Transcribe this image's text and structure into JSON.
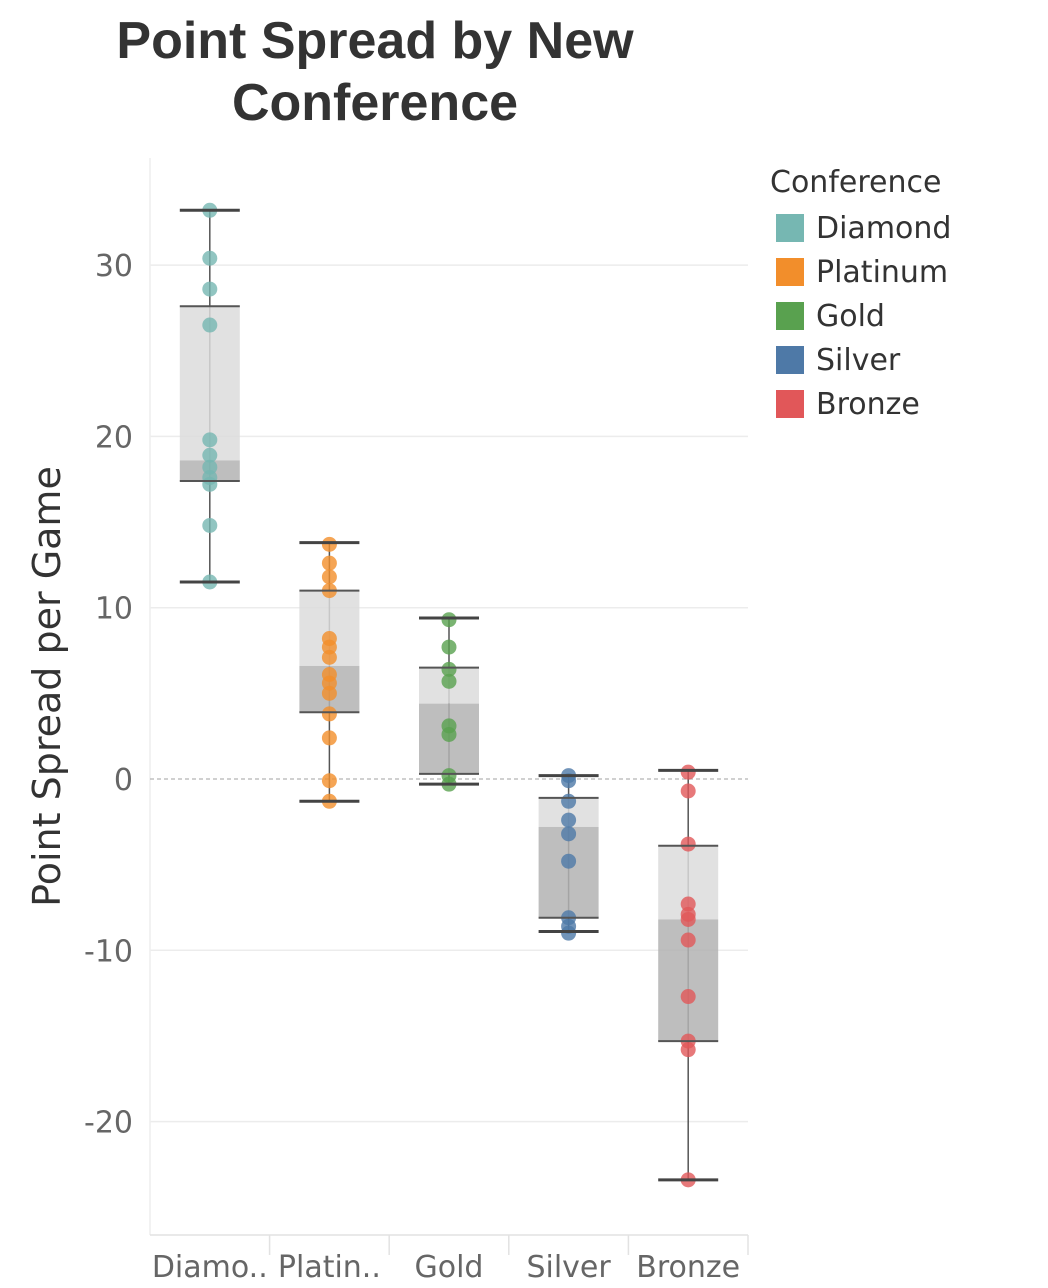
{
  "title": {
    "line1": "Point Spread by New",
    "line2": "Conference"
  },
  "chart_data": {
    "type": "boxplot",
    "title": "Point Spread by New Conference",
    "ylabel": "Point Spread per Game",
    "xlabel": "",
    "ylim": [
      -27,
      37
    ],
    "yticks": [
      -20,
      -10,
      0,
      10,
      20,
      30
    ],
    "ytick_labels": [
      "-20",
      "-10",
      "0",
      "10",
      "20",
      "30"
    ],
    "grid": true,
    "zero_line": true,
    "categories": [
      "Diamo..",
      "Platin..",
      "Gold",
      "Silver",
      "Bronze"
    ],
    "series": [
      {
        "name": "Diamond",
        "color": "#76b7b2",
        "whisker_low": 11.5,
        "q1": 17.4,
        "median": 18.6,
        "q3": 27.6,
        "whisker_high": 33.2,
        "points": [
          33.2,
          30.4,
          28.6,
          26.5,
          19.8,
          18.9,
          18.2,
          17.6,
          17.2,
          14.8,
          11.5
        ]
      },
      {
        "name": "Platinum",
        "color": "#f28e2b",
        "whisker_low": -1.3,
        "q1": 3.9,
        "median": 6.6,
        "q3": 11.0,
        "whisker_high": 13.8,
        "points": [
          13.7,
          12.6,
          11.8,
          11.0,
          8.2,
          7.7,
          7.1,
          6.1,
          5.6,
          5.0,
          3.8,
          2.4,
          -0.1,
          -1.3
        ]
      },
      {
        "name": "Gold",
        "color": "#59a14f",
        "whisker_low": -0.3,
        "q1": 0.3,
        "median": 4.4,
        "q3": 6.5,
        "whisker_high": 9.4,
        "points": [
          9.3,
          7.7,
          6.4,
          5.7,
          3.1,
          2.6,
          0.2,
          -0.3
        ]
      },
      {
        "name": "Silver",
        "color": "#4e79a7",
        "whisker_low": -8.9,
        "q1": -8.1,
        "median": -2.8,
        "q3": -1.1,
        "whisker_high": 0.2,
        "points": [
          0.2,
          -0.1,
          -1.3,
          -2.4,
          -3.2,
          -4.8,
          -8.1,
          -8.6,
          -9.0
        ]
      },
      {
        "name": "Bronze",
        "color": "#e15759",
        "whisker_low": -23.4,
        "q1": -15.3,
        "median": -8.2,
        "q3": -3.9,
        "whisker_high": 0.5,
        "points": [
          0.4,
          -0.7,
          -3.8,
          -7.3,
          -7.9,
          -8.2,
          -9.4,
          -12.7,
          -15.3,
          -15.8,
          -23.4
        ]
      }
    ]
  },
  "legend": {
    "title": "Conference",
    "items": [
      {
        "label": "Diamond",
        "color": "#76b7b2"
      },
      {
        "label": "Platinum",
        "color": "#f28e2b"
      },
      {
        "label": "Gold",
        "color": "#59a14f"
      },
      {
        "label": "Silver",
        "color": "#4e79a7"
      },
      {
        "label": "Bronze",
        "color": "#e15759"
      }
    ]
  }
}
